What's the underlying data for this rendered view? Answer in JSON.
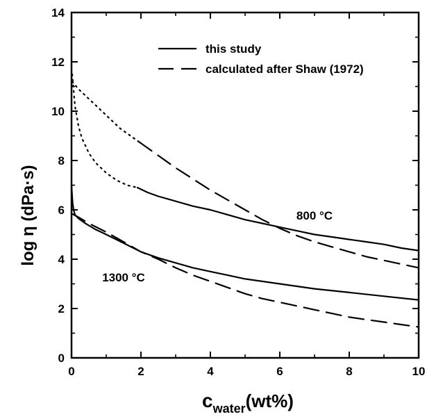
{
  "chart_data": {
    "type": "line",
    "xlabel": {
      "main": "c",
      "sub": "water",
      "unit": "(wt%)"
    },
    "ylabel": "log η (dPa·s)",
    "xlim": [
      0,
      10
    ],
    "ylim": [
      0,
      14
    ],
    "x_ticks": [
      0,
      2,
      4,
      6,
      8,
      10
    ],
    "y_ticks": [
      0,
      2,
      4,
      6,
      8,
      10,
      12,
      14
    ],
    "grid": false,
    "legend": {
      "placement": "top-right",
      "entries": [
        {
          "label": "this study",
          "style": "solid"
        },
        {
          "label": "calculated after Shaw (1972)",
          "style": "dashed"
        }
      ]
    },
    "annotations": [
      {
        "text": "800 °C",
        "x": 7.0,
        "y": 5.6
      },
      {
        "text": "1300 °C",
        "x": 1.5,
        "y": 3.1
      }
    ],
    "series": [
      {
        "group": "800 °C",
        "style": "dotted",
        "x": [
          0.02,
          0.1,
          0.2,
          0.3,
          0.5,
          0.7,
          1.0,
          1.3,
          1.6,
          1.9
        ],
        "y": [
          11.5,
          10.2,
          9.4,
          8.9,
          8.3,
          7.9,
          7.5,
          7.2,
          7.0,
          6.9
        ]
      },
      {
        "group": "800 °C",
        "style": "solid",
        "x": [
          1.9,
          2.2,
          2.5,
          3,
          3.5,
          4,
          4.5,
          5,
          5.5,
          6,
          6.5,
          7,
          7.5,
          8,
          8.5,
          9,
          9.5,
          10
        ],
        "y": [
          6.9,
          6.7,
          6.55,
          6.35,
          6.15,
          6.0,
          5.8,
          5.6,
          5.45,
          5.3,
          5.15,
          5.0,
          4.9,
          4.8,
          4.7,
          4.6,
          4.45,
          4.35
        ]
      },
      {
        "group": "800 °C",
        "style": "dotted",
        "x": [
          0.02,
          0.2,
          0.5,
          0.8,
          1.1,
          1.4,
          1.7,
          1.95
        ],
        "y": [
          11.2,
          10.9,
          10.5,
          10.1,
          9.7,
          9.3,
          9.0,
          8.75
        ]
      },
      {
        "group": "800 °C",
        "style": "dashed",
        "x": [
          1.95,
          2.5,
          3,
          3.5,
          4,
          4.5,
          5,
          5.5,
          6,
          6.5,
          7,
          7.5,
          8,
          8.5,
          9,
          9.5,
          10
        ],
        "y": [
          8.75,
          8.2,
          7.7,
          7.25,
          6.8,
          6.4,
          6.0,
          5.6,
          5.25,
          4.95,
          4.7,
          4.5,
          4.3,
          4.1,
          3.95,
          3.8,
          3.65
        ]
      },
      {
        "group": "1300 °C",
        "style": "solid",
        "x": [
          0.0,
          0.03,
          0.06,
          0.1,
          0.2,
          0.4,
          0.7,
          1.0,
          1.5,
          2.0,
          2.5,
          3,
          3.5,
          4,
          4.5,
          5,
          6,
          7,
          8,
          9,
          10
        ],
        "y": [
          7.0,
          6.3,
          6.0,
          5.8,
          5.65,
          5.45,
          5.2,
          5.0,
          4.65,
          4.3,
          4.05,
          3.85,
          3.65,
          3.5,
          3.35,
          3.2,
          3.0,
          2.8,
          2.65,
          2.5,
          2.35
        ]
      },
      {
        "group": "1300 °C",
        "style": "dashed",
        "x": [
          0.0,
          0.2,
          0.5,
          1.0,
          1.5,
          2.0,
          2.5,
          3,
          3.5,
          4,
          4.5,
          5,
          5.5,
          6,
          6.5,
          7,
          7.5,
          8,
          8.5,
          9,
          9.5,
          10
        ],
        "y": [
          5.85,
          5.7,
          5.45,
          5.1,
          4.7,
          4.3,
          4.0,
          3.65,
          3.35,
          3.1,
          2.85,
          2.6,
          2.4,
          2.25,
          2.1,
          1.95,
          1.8,
          1.65,
          1.55,
          1.45,
          1.35,
          1.25
        ]
      }
    ]
  }
}
